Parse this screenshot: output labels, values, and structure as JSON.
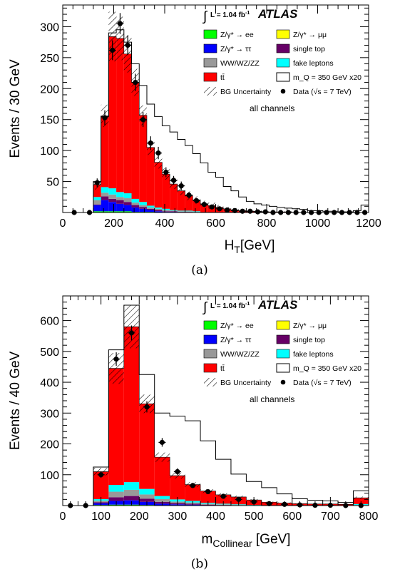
{
  "chart_data": [
    {
      "type": "stacked-histogram",
      "panel_caption": "(a)",
      "xlabel_main": "H",
      "xlabel_sub": "T",
      "xlabel_unit": "[GeV]",
      "ylabel": "Events / 30 GeV",
      "xlim": [
        0,
        1200
      ],
      "ylim": [
        0,
        335
      ],
      "xticks": [
        "0",
        "200",
        "400",
        "600",
        "800",
        "1000",
        "1200"
      ],
      "yticks": [
        "50",
        "100",
        "150",
        "200",
        "250",
        "300"
      ],
      "lumi": "L = 1.04 fb",
      "lumi_sup": "-1",
      "experiment": "ATLAS",
      "channels_text": "all channels",
      "bin_edges": [
        120,
        150,
        180,
        210,
        240,
        270,
        300,
        330,
        360,
        390,
        420,
        450,
        480,
        510,
        540,
        570,
        600,
        630,
        660,
        690,
        720,
        750,
        780,
        810,
        840,
        870,
        900,
        930,
        960,
        990,
        1020,
        1050,
        1080,
        1110,
        1140,
        1170,
        1200
      ],
      "series": [
        {
          "name": "Z/γ* → ee",
          "color": "#00ff00",
          "values": [
            2,
            2,
            2,
            2,
            2,
            1,
            1,
            1,
            0,
            0,
            0,
            0,
            0,
            0,
            0,
            0,
            0,
            0,
            0,
            0,
            0,
            0,
            0,
            0,
            0,
            0,
            0,
            0,
            0,
            0,
            0,
            0,
            0,
            0,
            0,
            0
          ]
        },
        {
          "name": "Z/γ* → ττ",
          "color": "#0000ff",
          "values": [
            10,
            18,
            15,
            12,
            10,
            7,
            5,
            3,
            2,
            1,
            1,
            0,
            0,
            0,
            0,
            0,
            0,
            0,
            0,
            0,
            0,
            0,
            0,
            0,
            0,
            0,
            0,
            0,
            0,
            0,
            0,
            0,
            0,
            0,
            0,
            0
          ]
        },
        {
          "name": "single top",
          "color": "#660066",
          "values": [
            1,
            6,
            5,
            6,
            5,
            4,
            3,
            2,
            2,
            1,
            1,
            1,
            1,
            0,
            0,
            0,
            0,
            0,
            0,
            0,
            0,
            0,
            0,
            0,
            0,
            0,
            0,
            0,
            0,
            0,
            0,
            0,
            0,
            0,
            0,
            0
          ]
        },
        {
          "name": "WW/WZ/ZZ",
          "color": "#999999",
          "values": [
            7,
            6,
            7,
            5,
            6,
            4,
            3,
            2,
            2,
            2,
            1,
            1,
            1,
            1,
            0,
            0,
            0,
            0,
            0,
            0,
            0,
            0,
            0,
            0,
            0,
            0,
            0,
            0,
            0,
            0,
            0,
            0,
            0,
            0,
            0,
            0
          ]
        },
        {
          "name": "fake leptons",
          "color": "#00ffff",
          "values": [
            5,
            9,
            10,
            8,
            8,
            6,
            5,
            3,
            2,
            2,
            1,
            1,
            1,
            1,
            0,
            0,
            0,
            0,
            0,
            0,
            0,
            0,
            0,
            0,
            0,
            0,
            0,
            0,
            0,
            0,
            0,
            0,
            0,
            0,
            0,
            0
          ]
        },
        {
          "name": "tt̄",
          "color": "#ff0000",
          "values": [
            20,
            115,
            245,
            248,
            225,
            188,
            140,
            94,
            73,
            56,
            42,
            32,
            24,
            18,
            14,
            11,
            8,
            6,
            4,
            3,
            2,
            2,
            1,
            1,
            1,
            1,
            0,
            0,
            0,
            0,
            0,
            0,
            0,
            0,
            0,
            0
          ]
        }
      ],
      "bg_total": [
        45,
        156,
        284,
        281,
        256,
        210,
        157,
        105,
        81,
        62,
        46,
        35,
        27,
        20,
        14,
        11,
        8,
        6,
        4,
        3,
        2,
        2,
        1,
        1,
        1,
        1,
        0,
        0,
        0,
        0,
        0,
        0,
        0,
        0,
        0,
        0
      ],
      "bg_uncertainty": [
        8,
        18,
        40,
        35,
        30,
        22,
        16,
        12,
        10,
        9,
        8,
        7,
        7,
        6,
        5,
        5,
        4,
        3,
        3,
        2,
        2,
        2,
        1,
        1,
        1,
        1,
        0,
        0,
        0,
        0,
        0,
        0,
        0,
        0,
        0,
        0
      ],
      "signal_x20": [
        50,
        155,
        290,
        295,
        275,
        240,
        205,
        175,
        155,
        140,
        130,
        118,
        108,
        95,
        80,
        65,
        57,
        42,
        35,
        25,
        18,
        14,
        12,
        10,
        8,
        7,
        6,
        5,
        3,
        3,
        2,
        2,
        1,
        1,
        3,
        12
      ],
      "data": {
        "x": [
          45,
          105,
          135,
          165,
          195,
          225,
          255,
          285,
          315,
          345,
          375,
          405,
          435,
          465,
          495,
          525,
          555,
          585,
          615,
          645,
          675,
          705,
          735,
          765,
          795,
          825,
          855,
          885,
          915,
          945,
          975,
          1005,
          1035,
          1065,
          1095,
          1125,
          1155,
          1185
        ],
        "y": [
          0,
          0,
          48,
          153,
          262,
          305,
          270,
          210,
          150,
          112,
          96,
          65,
          52,
          43,
          28,
          19,
          13,
          9,
          6,
          4,
          3,
          2,
          2,
          1,
          1,
          0,
          0,
          0,
          0,
          0,
          0,
          0,
          0,
          0,
          0,
          0,
          0,
          0
        ],
        "err": [
          0,
          0,
          7,
          12,
          16,
          17,
          16,
          14,
          12,
          11,
          10,
          8,
          7,
          7,
          5,
          4,
          4,
          3,
          2,
          2,
          2,
          1,
          1,
          1,
          1,
          0,
          0,
          0,
          0,
          0,
          0,
          0,
          0,
          0,
          0,
          0,
          0,
          0
        ]
      },
      "legend": [
        {
          "label": "Z/γ* → ee",
          "kind": "fill",
          "color": "#00ff00"
        },
        {
          "label": "Z/γ* → μμ",
          "kind": "fill",
          "color": "#ffff00"
        },
        {
          "label": "Z/γ* → ττ",
          "kind": "fill",
          "color": "#0000ff"
        },
        {
          "label": "single top",
          "kind": "fill",
          "color": "#660066"
        },
        {
          "label": "WW/WZ/ZZ",
          "kind": "fill",
          "color": "#999999"
        },
        {
          "label": "fake leptons",
          "kind": "fill",
          "color": "#00ffff"
        },
        {
          "label": "tt̄",
          "kind": "fill",
          "color": "#ff0000"
        },
        {
          "label": "m_Q = 350 GeV x20",
          "kind": "outline",
          "color": "#000000"
        },
        {
          "label": "BG Uncertainty",
          "kind": "hatch",
          "color": "#000000"
        },
        {
          "label": "Data (√s = 7 TeV)",
          "kind": "marker",
          "color": "#000000"
        }
      ]
    },
    {
      "type": "stacked-histogram",
      "panel_caption": "(b)",
      "xlabel_main": "m",
      "xlabel_sub": "Collinear",
      "xlabel_unit": " [GeV]",
      "ylabel": "Events / 40 GeV",
      "xlim": [
        0,
        800
      ],
      "ylim": [
        0,
        680
      ],
      "xticks": [
        "0",
        "100",
        "200",
        "300",
        "400",
        "500",
        "600",
        "700",
        "800"
      ],
      "yticks": [
        "100",
        "200",
        "300",
        "400",
        "500",
        "600"
      ],
      "lumi": "L = 1.04 fb",
      "lumi_sup": "-1",
      "experiment": "ATLAS",
      "channels_text": "all channels",
      "bin_edges": [
        80,
        120,
        160,
        200,
        240,
        280,
        320,
        360,
        400,
        440,
        480,
        520,
        560,
        600,
        640,
        680,
        720,
        760,
        800
      ],
      "series": [
        {
          "name": "Z/γ* → ee",
          "color": "#00ff00",
          "values": [
            2,
            3,
            3,
            2,
            1,
            1,
            1,
            0,
            0,
            0,
            0,
            0,
            0,
            0,
            0,
            0,
            0,
            0
          ]
        },
        {
          "name": "Z/γ* → ττ",
          "color": "#0000ff",
          "values": [
            5,
            12,
            14,
            10,
            5,
            3,
            2,
            1,
            1,
            0,
            0,
            0,
            0,
            0,
            0,
            0,
            0,
            0
          ]
        },
        {
          "name": "single top",
          "color": "#660066",
          "values": [
            4,
            12,
            14,
            10,
            6,
            4,
            3,
            2,
            1,
            1,
            0,
            0,
            0,
            0,
            0,
            0,
            0,
            0
          ]
        },
        {
          "name": "WW/WZ/ZZ",
          "color": "#999999",
          "values": [
            5,
            18,
            20,
            14,
            9,
            5,
            4,
            3,
            2,
            1,
            1,
            0,
            0,
            0,
            0,
            0,
            0,
            2
          ]
        },
        {
          "name": "fake leptons",
          "color": "#00ffff",
          "values": [
            5,
            22,
            25,
            18,
            10,
            7,
            5,
            3,
            2,
            2,
            1,
            1,
            0,
            0,
            0,
            0,
            0,
            3
          ]
        },
        {
          "name": "tt̄",
          "color": "#ff0000",
          "values": [
            89,
            378,
            504,
            276,
            126,
            77,
            53,
            38,
            29,
            24,
            16,
            10,
            8,
            6,
            5,
            5,
            4,
            20
          ]
        }
      ],
      "bg_total": [
        110,
        445,
        580,
        330,
        157,
        97,
        68,
        47,
        35,
        28,
        18,
        11,
        8,
        6,
        5,
        5,
        4,
        25
      ],
      "bg_uncertainty": [
        12,
        50,
        70,
        30,
        15,
        10,
        8,
        6,
        5,
        4,
        3,
        2,
        2,
        1,
        1,
        1,
        1,
        4
      ],
      "signal_x20": [
        125,
        505,
        650,
        425,
        300,
        290,
        275,
        210,
        150,
        102,
        78,
        58,
        38,
        22,
        17,
        15,
        10,
        48
      ],
      "data": {
        "x": [
          20,
          60,
          100,
          140,
          180,
          220,
          260,
          300,
          340,
          380,
          420,
          460,
          500,
          540,
          580,
          620,
          660,
          700,
          740,
          780
        ],
        "y": [
          0,
          0,
          100,
          475,
          560,
          320,
          205,
          110,
          65,
          45,
          30,
          20,
          12,
          6,
          4,
          2,
          1,
          1,
          0,
          0
        ],
        "err": [
          0,
          0,
          10,
          22,
          24,
          18,
          14,
          11,
          8,
          7,
          6,
          5,
          4,
          3,
          2,
          2,
          1,
          1,
          0,
          0
        ]
      },
      "legend": [
        {
          "label": "Z/γ* → ee",
          "kind": "fill",
          "color": "#00ff00"
        },
        {
          "label": "Z/γ* → μμ",
          "kind": "fill",
          "color": "#ffff00"
        },
        {
          "label": "Z/γ* → ττ",
          "kind": "fill",
          "color": "#0000ff"
        },
        {
          "label": "single top",
          "kind": "fill",
          "color": "#660066"
        },
        {
          "label": "WW/WZ/ZZ",
          "kind": "fill",
          "color": "#999999"
        },
        {
          "label": "fake leptons",
          "kind": "fill",
          "color": "#00ffff"
        },
        {
          "label": "tt̄",
          "kind": "fill",
          "color": "#ff0000"
        },
        {
          "label": "m_Q = 350 GeV x20",
          "kind": "outline",
          "color": "#000000"
        },
        {
          "label": "BG Uncertainty",
          "kind": "hatch",
          "color": "#000000"
        },
        {
          "label": "Data (√s = 7 TeV)",
          "kind": "marker",
          "color": "#000000"
        }
      ]
    }
  ]
}
